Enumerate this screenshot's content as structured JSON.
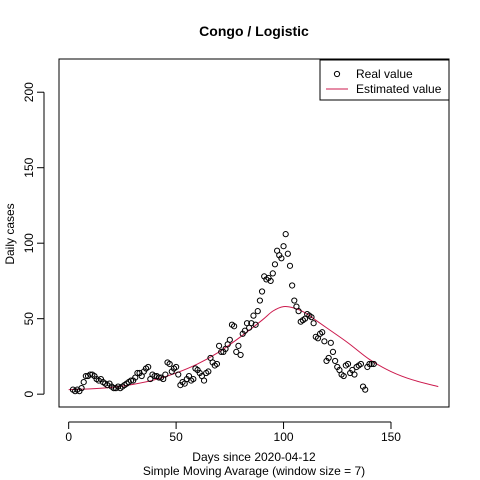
{
  "chart_data": {
    "type": "scatter",
    "title": "Congo / Logistic",
    "xlabel": "Days since 2020-04-12",
    "sub_xlabel": "Simple Moving Avarage (window size = 7)",
    "ylabel": "Daily cases",
    "xlim": [
      -4.5,
      177
    ],
    "ylim": [
      -8.5,
      222
    ],
    "xticks": [
      0,
      50,
      100,
      150
    ],
    "yticks": [
      0,
      50,
      100,
      150,
      200
    ],
    "grid": false,
    "legend_position": "top-right",
    "series": [
      {
        "name": "Real value",
        "kind": "points",
        "color": "#000000",
        "marker": "open-circle",
        "x": [
          2,
          3,
          4,
          5,
          6,
          7,
          8,
          9,
          10,
          11,
          12,
          13,
          14,
          15,
          16,
          17,
          18,
          19,
          20,
          21,
          22,
          23,
          24,
          25,
          26,
          27,
          28,
          29,
          30,
          31,
          32,
          33,
          34,
          35,
          36,
          37,
          38,
          39,
          40,
          41,
          42,
          43,
          44,
          45,
          46,
          47,
          48,
          49,
          50,
          51,
          52,
          53,
          54,
          55,
          56,
          57,
          58,
          59,
          60,
          61,
          62,
          63,
          64,
          65,
          66,
          67,
          68,
          69,
          70,
          71,
          72,
          73,
          74,
          75,
          76,
          77,
          78,
          79,
          80,
          81,
          82,
          83,
          84,
          85,
          86,
          87,
          88,
          89,
          90,
          91,
          92,
          93,
          94,
          95,
          96,
          97,
          98,
          99,
          100,
          101,
          102,
          103,
          104,
          105,
          106,
          107,
          108,
          109,
          110,
          111,
          112,
          113,
          114,
          115,
          116,
          117,
          118,
          119,
          120,
          121,
          122,
          123,
          124,
          125,
          126,
          127,
          128,
          129,
          130,
          131,
          132,
          133,
          134,
          135,
          136,
          137,
          138,
          139,
          140,
          141,
          142
        ],
        "y": [
          3,
          2,
          3,
          2,
          4,
          8,
          12,
          12,
          13,
          13,
          12,
          10,
          9,
          10,
          8,
          7,
          6,
          7,
          5,
          4,
          4,
          5,
          4,
          5,
          6,
          7,
          8,
          9,
          9,
          11,
          14,
          14,
          12,
          15,
          17,
          18,
          10,
          13,
          12,
          12,
          11,
          11,
          10,
          13,
          21,
          20,
          15,
          17,
          18,
          13,
          6,
          8,
          7,
          10,
          12,
          9,
          10,
          17,
          16,
          14,
          12,
          9,
          14,
          15,
          24,
          21,
          19,
          20,
          32,
          28,
          28,
          30,
          33,
          36,
          46,
          45,
          28,
          32,
          26,
          40,
          42,
          47,
          44,
          47,
          52,
          46,
          55,
          62,
          68,
          78,
          76,
          77,
          75,
          80,
          86,
          95,
          92,
          90,
          98,
          106,
          93,
          85,
          72,
          62,
          58,
          55,
          48,
          49,
          50,
          53,
          52,
          51,
          47,
          38,
          37,
          40,
          41,
          35,
          22,
          24,
          34,
          28,
          22,
          18,
          16,
          13,
          12,
          19,
          20,
          14,
          16,
          13,
          18,
          19,
          20,
          5,
          3,
          18,
          20,
          20,
          20
        ]
      },
      {
        "name": "Estimated value",
        "kind": "line",
        "color": "#cc1a4d",
        "x": [
          0,
          10,
          20,
          30,
          40,
          50,
          60,
          70,
          80,
          90,
          95,
          100,
          105,
          110,
          115,
          120,
          130,
          140,
          150,
          160,
          172
        ],
        "y": [
          3,
          3.5,
          4.5,
          6.5,
          9.5,
          14,
          20,
          28,
          38,
          49,
          55,
          58,
          57,
          54,
          49,
          44,
          34,
          23,
          15,
          9.5,
          5
        ]
      }
    ]
  }
}
